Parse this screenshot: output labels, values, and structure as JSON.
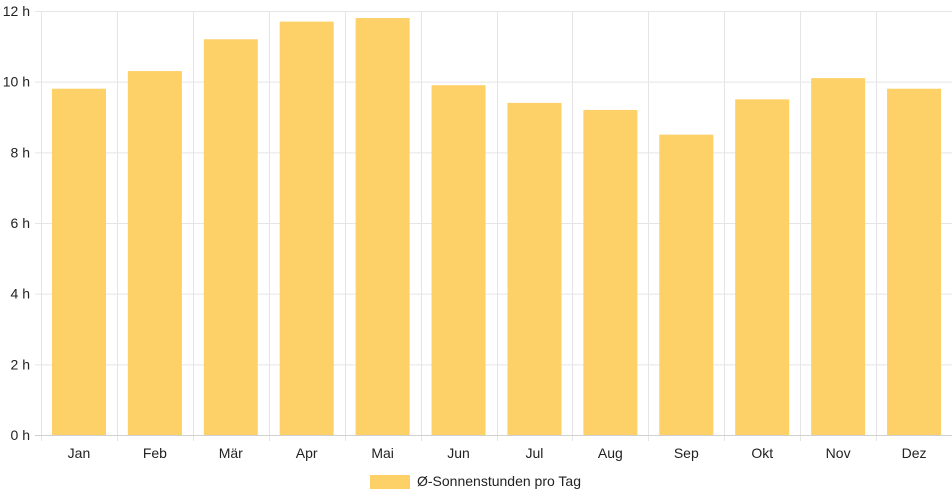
{
  "chart_data": {
    "type": "bar",
    "categories": [
      "Jan",
      "Feb",
      "Mär",
      "Apr",
      "Mai",
      "Jun",
      "Jul",
      "Aug",
      "Sep",
      "Okt",
      "Nov",
      "Dez"
    ],
    "series": [
      {
        "name": "Ø-Sonnenstunden pro Tag",
        "values": [
          9.8,
          10.3,
          11.2,
          11.7,
          11.8,
          9.9,
          9.4,
          9.2,
          8.5,
          9.5,
          10.1,
          9.8
        ],
        "color": "#fdd068"
      }
    ],
    "y_ticks": [
      "0 h",
      "2 h",
      "4 h",
      "6 h",
      "8 h",
      "10 h",
      "12 h"
    ],
    "ylim": [
      0,
      12
    ],
    "grid": true,
    "legend_position": "bottom-center",
    "gridline_color": "#e5e5e5"
  }
}
